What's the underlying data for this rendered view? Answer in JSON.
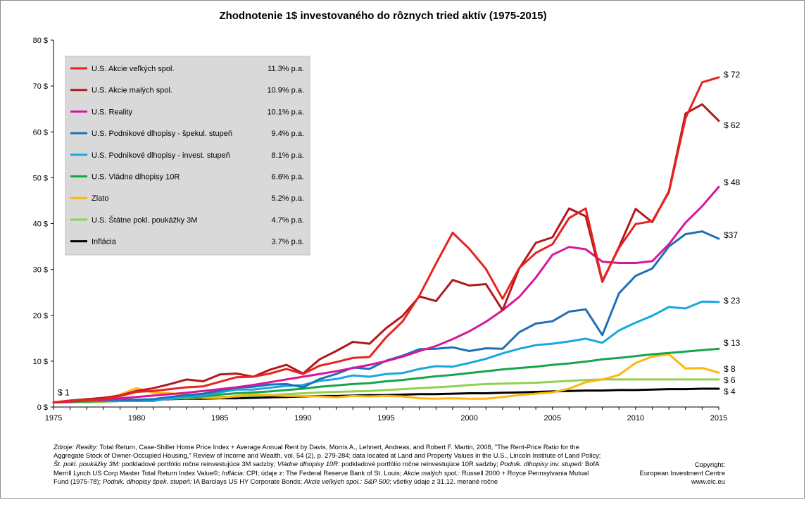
{
  "chart_data": {
    "type": "line",
    "title": "Zhodnotenie 1$ investovaného do rôznych tried aktív (1975-2015)",
    "xlim": [
      1975,
      2015
    ],
    "ylim": [
      0,
      80
    ],
    "x_ticks": [
      1975,
      1980,
      1985,
      1990,
      1995,
      2000,
      2005,
      2010,
      2015
    ],
    "y_ticks": [
      0,
      10,
      20,
      30,
      40,
      50,
      60,
      70,
      80
    ],
    "y_tick_labels": [
      "0 $",
      "10 $",
      "20 $",
      "30 $",
      "40 $",
      "50 $",
      "60 $",
      "70 $",
      "80 $"
    ],
    "start_label": "$ 1",
    "legend_position": "top-left",
    "grid": false,
    "x": [
      1975,
      1976,
      1977,
      1978,
      1979,
      1980,
      1981,
      1982,
      1983,
      1984,
      1985,
      1986,
      1987,
      1988,
      1989,
      1990,
      1991,
      1992,
      1993,
      1994,
      1995,
      1996,
      1997,
      1998,
      1999,
      2000,
      2001,
      2002,
      2003,
      2004,
      2005,
      2006,
      2007,
      2008,
      2009,
      2010,
      2011,
      2012,
      2013,
      2014,
      2015
    ],
    "series": [
      {
        "name": "U.S. Akcie veľkých spol.",
        "rate": "11.3% p.a.",
        "color": "#E8231E",
        "end_label": "$ 72",
        "values": [
          1.0,
          1.4,
          1.5,
          1.7,
          2.4,
          3.3,
          3.5,
          3.9,
          4.3,
          4.5,
          5.5,
          6.5,
          6.6,
          7.3,
          8.3,
          7.2,
          9.0,
          9.8,
          10.7,
          10.9,
          15.2,
          18.7,
          24.3,
          31.3,
          38.0,
          34.5,
          30.1,
          23.6,
          30.3,
          33.6,
          35.5,
          41.2,
          43.3,
          27.5,
          34.7,
          39.9,
          40.5,
          46.8,
          63.0,
          70.8,
          71.9
        ]
      },
      {
        "name": "U.S. Akcie malých spol.",
        "rate": "10.9% p.a.",
        "color": "#B01A1E",
        "end_label": "$ 62",
        "values": [
          1.0,
          1.4,
          1.7,
          2.0,
          2.5,
          3.5,
          4.1,
          5.0,
          6.0,
          5.6,
          7.1,
          7.3,
          6.6,
          8.1,
          9.2,
          7.3,
          10.4,
          12.2,
          14.2,
          13.8,
          17.2,
          19.9,
          24.1,
          23.1,
          27.7,
          26.5,
          26.8,
          21.1,
          30.2,
          35.8,
          37.0,
          43.3,
          41.6,
          27.3,
          34.9,
          43.2,
          40.3,
          47.0,
          64.0,
          66.0,
          62.4
        ]
      },
      {
        "name": "U.S. Reality",
        "rate": "10.1% p.a.",
        "color": "#D6179A",
        "end_label": "$ 48",
        "values": [
          1.0,
          1.2,
          1.4,
          1.6,
          1.9,
          2.2,
          2.5,
          2.8,
          3.1,
          3.5,
          3.9,
          4.3,
          4.8,
          5.4,
          6.0,
          6.6,
          7.2,
          7.8,
          8.5,
          9.2,
          10.0,
          11.0,
          12.2,
          13.3,
          14.8,
          16.5,
          18.6,
          21.1,
          24.0,
          28.2,
          33.2,
          34.9,
          34.4,
          31.7,
          31.4,
          31.4,
          31.8,
          35.5,
          40.2,
          43.8,
          48.0
        ]
      },
      {
        "name": "U.S. Podnikové dlhopisy  - špekul. stupeň",
        "rate": "9.4% p.a.",
        "color": "#1F6FB8",
        "end_label": "$37",
        "values": [
          1.0,
          1.3,
          1.5,
          1.5,
          1.6,
          1.6,
          1.7,
          2.2,
          2.6,
          2.9,
          3.6,
          4.2,
          4.4,
          4.9,
          5.0,
          4.3,
          6.1,
          7.2,
          8.6,
          8.3,
          10.1,
          11.2,
          12.6,
          12.7,
          13.0,
          12.2,
          12.8,
          12.7,
          16.3,
          18.2,
          18.7,
          20.8,
          21.3,
          15.7,
          24.8,
          28.6,
          30.2,
          35.0,
          37.7,
          38.3,
          36.7
        ]
      },
      {
        "name": "U.S. Podnikové dlhopisy  - invest. stupeň",
        "rate": "8.1% p.a.",
        "color": "#18A7E0",
        "end_label": "$ 23",
        "values": [
          1.0,
          1.3,
          1.3,
          1.3,
          1.3,
          1.3,
          1.3,
          1.9,
          2.2,
          2.5,
          3.2,
          3.8,
          3.8,
          4.2,
          4.6,
          4.8,
          5.7,
          6.1,
          6.9,
          6.6,
          7.2,
          7.4,
          8.3,
          8.9,
          8.8,
          9.6,
          10.5,
          11.7,
          12.7,
          13.5,
          13.8,
          14.3,
          14.9,
          14.0,
          16.7,
          18.4,
          19.9,
          21.8,
          21.5,
          23.0,
          22.9
        ]
      },
      {
        "name": "U.S. Vládne dlhopisy  10R",
        "rate": "6.6% p.a.",
        "color": "#16A64A",
        "end_label": "$ 13",
        "values": [
          1.0,
          1.1,
          1.2,
          1.3,
          1.4,
          1.5,
          1.6,
          1.9,
          2.1,
          2.3,
          2.7,
          3.0,
          3.2,
          3.4,
          3.7,
          4.0,
          4.4,
          4.7,
          5.0,
          5.2,
          5.6,
          5.9,
          6.3,
          6.7,
          7.0,
          7.4,
          7.8,
          8.2,
          8.5,
          8.8,
          9.2,
          9.5,
          9.9,
          10.4,
          10.7,
          11.1,
          11.5,
          11.8,
          12.1,
          12.4,
          12.7
        ]
      },
      {
        "name": "Zlato",
        "rate": "5.2% p.a.",
        "color": "#FFB60F",
        "end_label": "$ 8",
        "values": [
          1.0,
          1.0,
          1.2,
          1.6,
          2.7,
          4.1,
          3.1,
          3.0,
          2.6,
          2.0,
          2.0,
          2.4,
          2.8,
          2.6,
          2.4,
          2.4,
          2.3,
          2.1,
          2.4,
          2.3,
          2.4,
          2.3,
          1.9,
          1.8,
          1.9,
          1.8,
          1.8,
          2.2,
          2.6,
          2.9,
          3.2,
          4.0,
          5.4,
          6.0,
          7.0,
          9.6,
          11.0,
          11.5,
          8.4,
          8.5,
          7.5
        ]
      },
      {
        "name": "U.S. Štátne pokl. poukážky 3M",
        "rate": "4.7% p.a.",
        "color": "#92D050",
        "end_label": "$ 6",
        "values": [
          1.0,
          1.1,
          1.1,
          1.2,
          1.3,
          1.4,
          1.6,
          1.8,
          1.9,
          2.1,
          2.2,
          2.3,
          2.5,
          2.6,
          2.8,
          3.0,
          3.2,
          3.3,
          3.4,
          3.5,
          3.7,
          3.9,
          4.1,
          4.3,
          4.5,
          4.8,
          5.0,
          5.1,
          5.2,
          5.3,
          5.5,
          5.7,
          5.9,
          6.0,
          6.0,
          6.0,
          6.0,
          6.0,
          6.0,
          6.0,
          6.0
        ]
      },
      {
        "name": "Inflácia",
        "rate": "3.7% p.a.",
        "color": "#000000",
        "end_label": "$ 4",
        "values": [
          1.0,
          1.1,
          1.1,
          1.2,
          1.3,
          1.5,
          1.6,
          1.7,
          1.8,
          1.8,
          1.9,
          1.9,
          2.0,
          2.1,
          2.2,
          2.3,
          2.4,
          2.4,
          2.5,
          2.6,
          2.6,
          2.7,
          2.8,
          2.8,
          2.9,
          3.0,
          3.0,
          3.1,
          3.2,
          3.3,
          3.4,
          3.5,
          3.6,
          3.6,
          3.7,
          3.7,
          3.8,
          3.9,
          3.9,
          4.0,
          4.0
        ]
      }
    ]
  },
  "footer": {
    "zdroje_label": "Zdroje:",
    "reality_label": "Reality:",
    "line1_a": " Total Return, Case-Shiller Home Price Index + Average Annual Rent by Davis, Morris A., Lehnert, Andreas, and Robert F. Martin, 2008, \"The Rent-Price Ratio for the Aggregate Stock of Owner-Occupied Housing,\" Review of Income and Wealth, vol. 54 (2), p. 279-284; data located at Land and Property Values in the U.S., Lincoln Institute of Land Policy; ",
    "stpokl_label": "Št. pokl. poukážky 3M:",
    "line2_a": " podkladové portfólio ročne reinvestujúce 3M sadzby; ",
    "vladne_label": "Vládne dlhopisy 10R:",
    "line2_b": " podkladové portfólio ročne reinvestujúce 10R sadzby; ",
    "podnik_label": "Podnik. dlhopisy inv. stupeň:",
    "line2_c": " BofA Merrill Lynch US Corp Master Total Return Index Value©; ",
    "inflacia_label": "Inflácia:",
    "line3_a": " CPI; údaje z: The Federal Reserve Bank of St. Louis; ",
    "akcie_male_label": "Akcie malých spol.:",
    "line3_b": " Russell 2000 + Royce Pennsylvania Mutual Fund (1975-78); ",
    "podnik_spek_label": "Podnik. dlhopisy špek. stupeň:",
    "line3_c": " IA Barclays US HY Corporate Bonds; ",
    "akcie_velke_label": "Akcie veľkých spol.:",
    "line3_d": " S&P 500",
    "line3_e": "; všetky údaje  z 31.12. merané ročne"
  },
  "copyright": {
    "line1": "Copyright:",
    "line2": "European Investment Centre",
    "line3": "www.eic.eu"
  }
}
